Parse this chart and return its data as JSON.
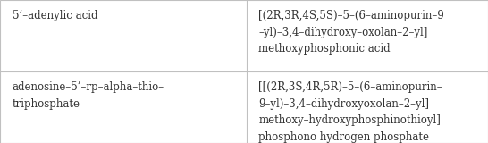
{
  "rows": [
    {
      "col1": "5’–adenylic acid",
      "col2": "[(2R,3R,4S,5S)–5–(6–aminopurin–9\n–yl)–3,4–dihydroxy–oxolan–2–yl]\nmethoxyphosphonic acid"
    },
    {
      "col1": "adenosine–5’–rp–alpha–thio–\ntriphosphate",
      "col2": "[[(2R,3S,4R,5R)–5–(6–aminopurin–\n9–yl)–3,4–dihydroxyoxolan–2–yl]\nmethoxy–hydroxyphosphinothioyl]\nphosphono hydrogen phosphate"
    }
  ],
  "col_split": 0.505,
  "background_color": "#ffffff",
  "border_color": "#c0c0c0",
  "text_color": "#333333",
  "font_size": 8.5,
  "font_family": "serif",
  "linespacing": 1.55
}
